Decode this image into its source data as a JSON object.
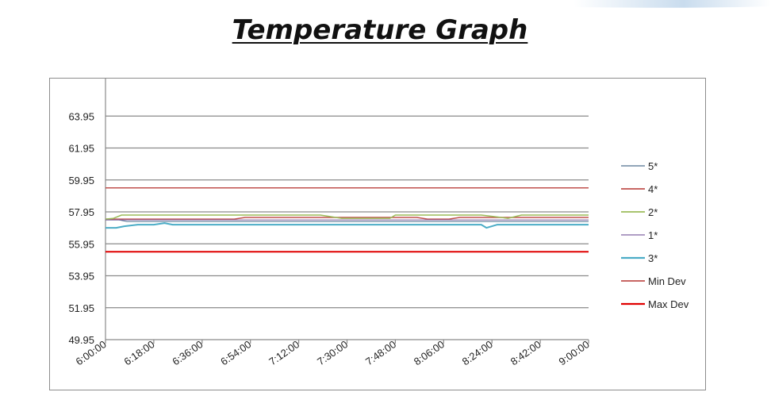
{
  "page": {
    "title": "Temperature Graph"
  },
  "chart_data": {
    "type": "line",
    "title": "",
    "xlabel": "",
    "ylabel": "",
    "x_ticks": [
      "6:00:00",
      "6:18:00",
      "6:36:00",
      "6:54:00",
      "7:12:00",
      "7:30:00",
      "7:48:00",
      "8:06:00",
      "8:24:00",
      "8:42:00",
      "9:00:00"
    ],
    "x_range_minutes": [
      0,
      180
    ],
    "ylim": [
      49.95,
      65.95
    ],
    "y_ticks": [
      "49.95",
      "51.95",
      "53.95",
      "55.95",
      "57.95",
      "59.95",
      "61.95",
      "63.95"
    ],
    "grid": "horizontal",
    "legend_position": "right",
    "series": [
      {
        "name": "5*",
        "color": "#4f6f8f",
        "width": 1,
        "x": [
          0,
          5,
          8,
          180
        ],
        "y": [
          57.45,
          57.45,
          57.35,
          57.35
        ]
      },
      {
        "name": "4*",
        "color": "#c0504d",
        "width": 1.5,
        "x": [
          0,
          48,
          52,
          75,
          80,
          116,
          120,
          128,
          132,
          175,
          180
        ],
        "y": [
          57.5,
          57.5,
          57.6,
          57.6,
          57.6,
          57.6,
          57.5,
          57.5,
          57.6,
          57.6,
          57.6
        ],
        "note": ""
      },
      {
        "name": "2*",
        "color": "#9bbb59",
        "width": 1.5,
        "x": [
          0,
          3,
          6,
          80,
          88,
          98,
          106,
          108,
          110,
          114,
          118,
          132,
          140,
          150,
          155,
          180
        ],
        "y": [
          57.5,
          57.55,
          57.75,
          57.75,
          57.55,
          57.55,
          57.55,
          57.75,
          57.75,
          57.75,
          57.75,
          57.75,
          57.75,
          57.55,
          57.75,
          57.75
        ],
        "note": ""
      },
      {
        "name": "1*",
        "color": "#8064a2",
        "width": 1,
        "x": [
          0,
          180
        ],
        "y": [
          57.45,
          57.45
        ]
      },
      {
        "name": "3*",
        "color": "#4bacc6",
        "width": 2,
        "x": [
          0,
          4,
          7,
          12,
          18,
          22,
          25,
          35,
          38,
          140,
          142,
          146,
          180
        ],
        "y": [
          56.95,
          56.95,
          57.05,
          57.15,
          57.15,
          57.25,
          57.15,
          57.15,
          57.15,
          57.15,
          56.95,
          57.15,
          57.15
        ]
      },
      {
        "name": "Min Dev",
        "color": "#c0504d",
        "width": 1.5,
        "x": [
          0,
          180
        ],
        "y": [
          59.45,
          59.45
        ]
      },
      {
        "name": "Max Dev",
        "color": "#e00000",
        "width": 2,
        "x": [
          0,
          180
        ],
        "y": [
          55.45,
          55.45
        ]
      }
    ]
  }
}
